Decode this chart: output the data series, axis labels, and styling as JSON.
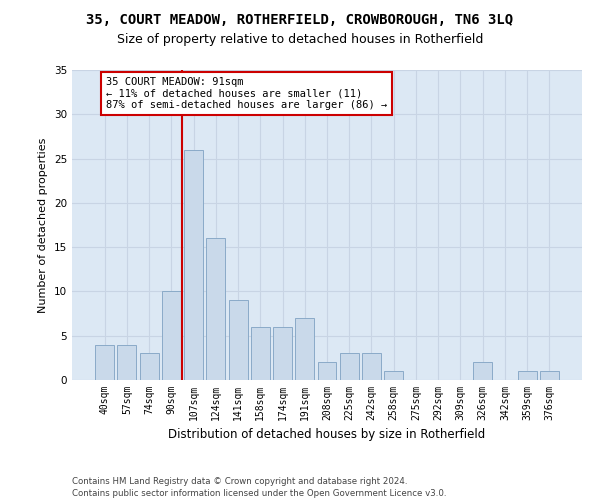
{
  "title1": "35, COURT MEADOW, ROTHERFIELD, CROWBOROUGH, TN6 3LQ",
  "title2": "Size of property relative to detached houses in Rotherfield",
  "xlabel": "Distribution of detached houses by size in Rotherfield",
  "ylabel": "Number of detached properties",
  "categories": [
    "40sqm",
    "57sqm",
    "74sqm",
    "90sqm",
    "107sqm",
    "124sqm",
    "141sqm",
    "158sqm",
    "174sqm",
    "191sqm",
    "208sqm",
    "225sqm",
    "242sqm",
    "258sqm",
    "275sqm",
    "292sqm",
    "309sqm",
    "326sqm",
    "342sqm",
    "359sqm",
    "376sqm"
  ],
  "values": [
    4,
    4,
    3,
    10,
    26,
    16,
    9,
    6,
    6,
    7,
    2,
    3,
    3,
    1,
    0,
    0,
    0,
    2,
    0,
    1,
    1
  ],
  "bar_color": "#c9d9ea",
  "bar_edgecolor": "#8aaac8",
  "vline_x": 3.5,
  "vline_color": "#cc0000",
  "annotation_title": "35 COURT MEADOW: 91sqm",
  "annotation_line2": "← 11% of detached houses are smaller (11)",
  "annotation_line3": "87% of semi-detached houses are larger (86) →",
  "annotation_box_color": "#ffffff",
  "annotation_box_edgecolor": "#cc0000",
  "ylim": [
    0,
    35
  ],
  "yticks": [
    0,
    5,
    10,
    15,
    20,
    25,
    30,
    35
  ],
  "grid_color": "#c8d4e4",
  "footer1": "Contains HM Land Registry data © Crown copyright and database right 2024.",
  "footer2": "Contains public sector information licensed under the Open Government Licence v3.0.",
  "background_color": "#dce8f4",
  "title1_fontsize": 10,
  "title2_fontsize": 9,
  "ann_fontsize": 7.5,
  "xlabel_fontsize": 8.5,
  "ylabel_fontsize": 8,
  "footer_fontsize": 6.2
}
